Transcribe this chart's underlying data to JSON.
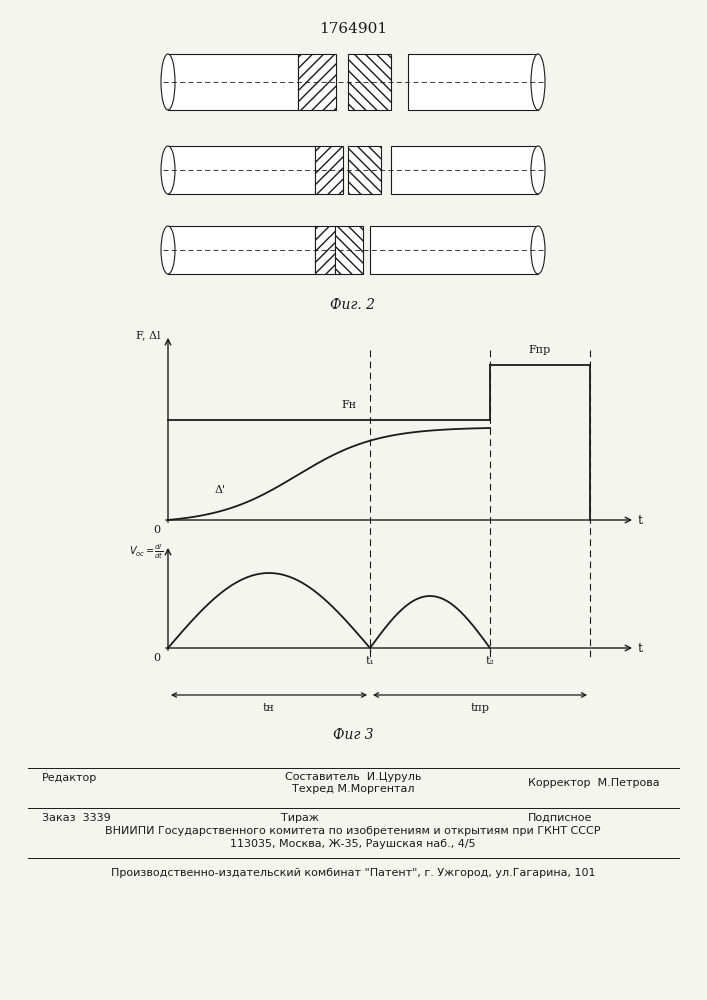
{
  "title": "1764901",
  "fig2_label": "Фиг. 2",
  "fig3_label": "Фиг 3",
  "bg_color": "#f5f5f0",
  "line_color": "#1a1a1a",
  "footer_line1_left": "Редактор",
  "footer_line1_center1": "Составитель  И.Цуруль",
  "footer_line1_center2": "Техред М.Моргентал",
  "footer_line1_right": "Корректор  М.Петрова",
  "footer2_left": "Заказ  3339",
  "footer2_center": "Тираж",
  "footer2_right": "Подписное",
  "footer3": "ВНИИПИ Государственного комитета по изобретениям и открытиям при ГКНТ СССР",
  "footer4": "113035, Москва, Ж-35, Раушская наб., 4/5",
  "footer5": "Производственно-издательский комбинат \"Патент\", г. Ужгород, ул.Гагарина, 101"
}
